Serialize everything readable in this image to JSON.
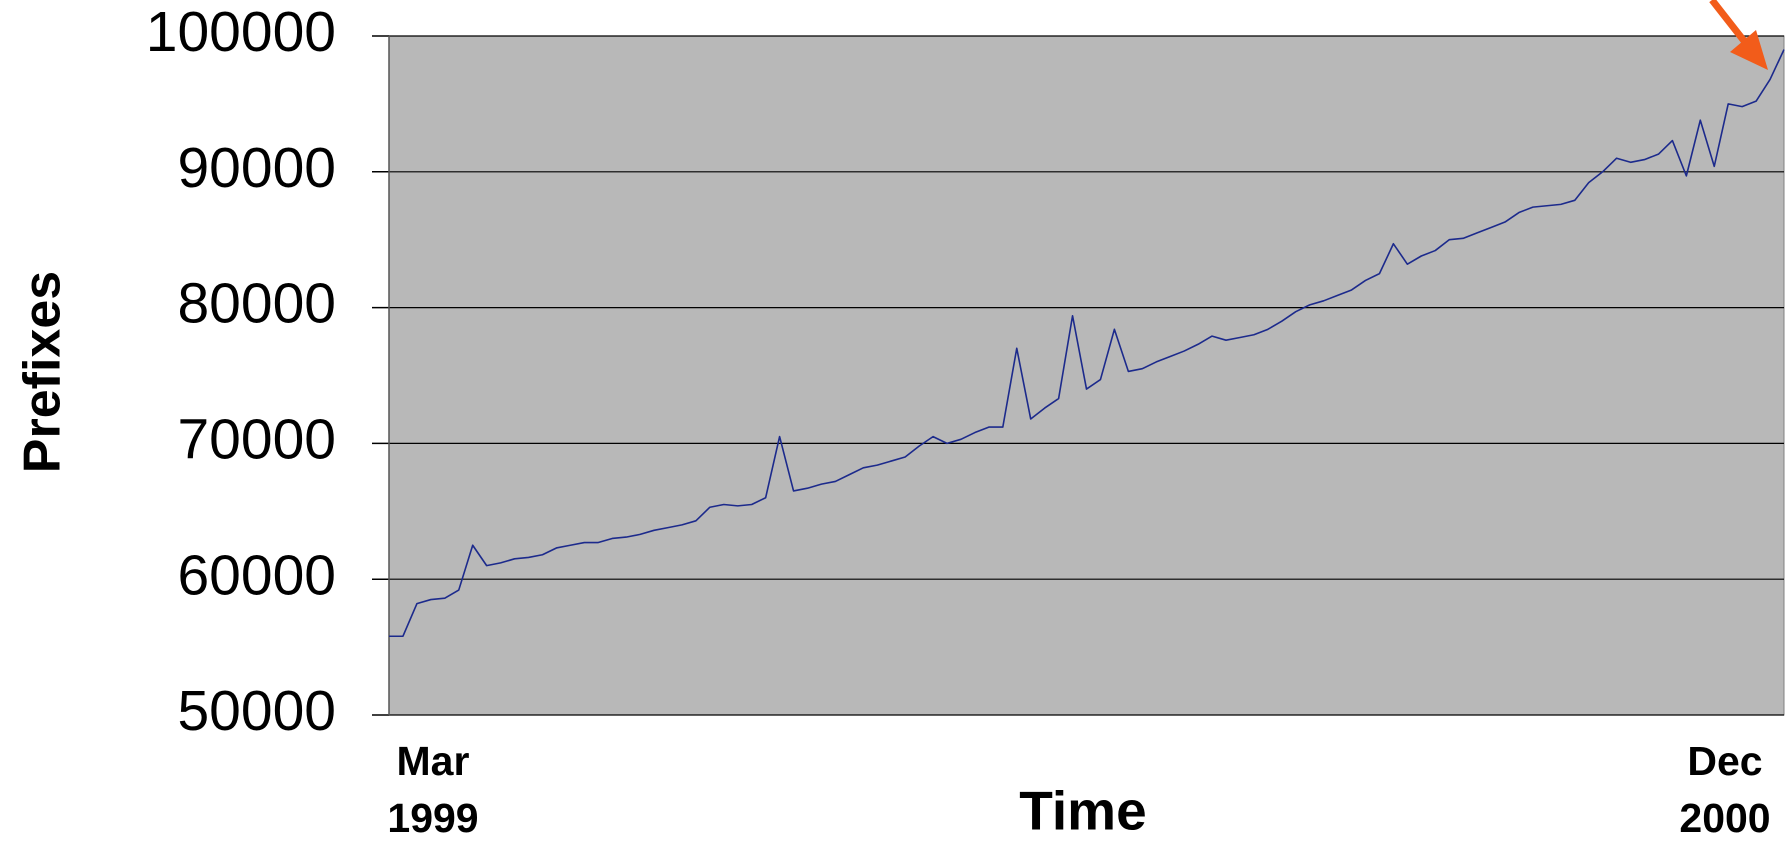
{
  "chart_data": {
    "type": "line",
    "x_label": "Time",
    "y_label": "Prefixes",
    "categories": [
      "Mar 1999",
      null,
      null,
      null,
      null,
      null,
      null,
      null,
      null,
      null,
      null,
      null,
      null,
      null,
      null,
      null,
      null,
      null,
      null,
      null,
      null,
      null,
      null,
      null,
      null,
      null,
      null,
      null,
      null,
      null,
      null,
      null,
      null,
      null,
      null,
      null,
      null,
      null,
      null,
      null,
      null,
      null,
      null,
      null,
      null,
      null,
      null,
      null,
      null,
      null,
      null,
      null,
      null,
      null,
      null,
      null,
      null,
      null,
      null,
      null,
      null,
      null,
      null,
      null,
      null,
      null,
      null,
      null,
      null,
      null,
      null,
      null,
      null,
      null,
      null,
      null,
      null,
      null,
      null,
      null,
      null,
      null,
      null,
      null,
      null,
      null,
      null,
      null,
      null,
      null,
      null,
      null,
      null,
      null,
      null,
      null,
      null,
      null,
      null,
      null,
      "Dec 2000"
    ],
    "series": [
      {
        "name": "Prefixes",
        "color": "#1c2a8c",
        "values": [
          55800,
          55800,
          58200,
          58500,
          58600,
          59200,
          62500,
          61000,
          61200,
          61500,
          61600,
          61800,
          62300,
          62500,
          62700,
          62700,
          63000,
          63100,
          63300,
          63600,
          63800,
          64000,
          64300,
          65300,
          65500,
          65400,
          65500,
          66000,
          70500,
          66500,
          66700,
          67000,
          67200,
          67700,
          68200,
          68400,
          68700,
          69000,
          69800,
          70500,
          70000,
          70300,
          70800,
          71200,
          71200,
          77000,
          71800,
          72600,
          73300,
          79400,
          74000,
          74700,
          78400,
          75300,
          75500,
          76000,
          76400,
          76800,
          77300,
          77900,
          77600,
          77800,
          78000,
          78400,
          79000,
          79700,
          80200,
          80500,
          80900,
          81300,
          82000,
          82500,
          84700,
          83200,
          83800,
          84200,
          85000,
          85100,
          85500,
          85900,
          86300,
          87000,
          87400,
          87500,
          87600,
          87900,
          89200,
          90000,
          91000,
          90700,
          90900,
          91300,
          92300,
          89700,
          93800,
          90400,
          95000,
          94800,
          95200,
          96800,
          99000
        ]
      }
    ],
    "ylim": [
      50000,
      100000
    ],
    "yticks": [
      50000,
      60000,
      70000,
      80000,
      90000,
      100000
    ],
    "grid": true,
    "plot_background": "#b8b8b8"
  }
}
